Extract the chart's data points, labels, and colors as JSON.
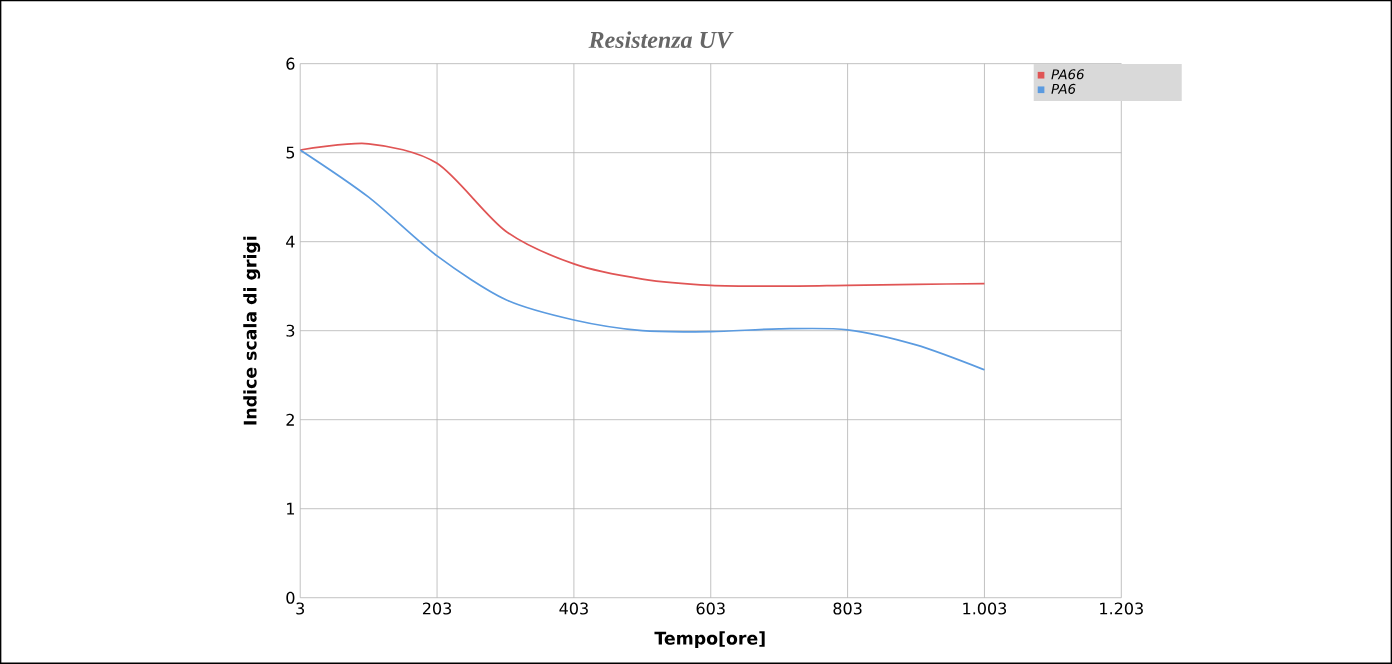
{
  "chart_data": {
    "type": "line",
    "title": "Resistenza UV",
    "xlabel": "Tempo[ore]",
    "ylabel": "Indice scala di grigi",
    "xlim": [
      3,
      1203
    ],
    "ylim": [
      0,
      6
    ],
    "xticks": [
      3,
      203,
      403,
      603,
      803,
      {
        "value": 1003,
        "label": "1.003"
      },
      {
        "value": 1203,
        "label": "1.203"
      }
    ],
    "yticks": [
      0,
      1,
      2,
      3,
      4,
      5,
      6
    ],
    "grid": true,
    "legend": "top right",
    "marker": "none",
    "line_style": "solid",
    "series": [
      {
        "name": "PA66",
        "color": "#e05555",
        "x": [
          3,
          103,
          203,
          303,
          403,
          503,
          603,
          703,
          803,
          903,
          1003
        ],
        "values": [
          5.03,
          5.1,
          4.88,
          4.12,
          3.75,
          3.58,
          3.51,
          3.5,
          3.51,
          3.52,
          3.53
        ]
      },
      {
        "name": "PA6",
        "color": "#5b9be0",
        "x": [
          3,
          103,
          203,
          303,
          403,
          503,
          603,
          703,
          803,
          903,
          1003
        ],
        "values": [
          5.03,
          4.5,
          3.84,
          3.35,
          3.12,
          3.0,
          2.99,
          3.02,
          3.01,
          2.84,
          2.56
        ]
      }
    ]
  }
}
